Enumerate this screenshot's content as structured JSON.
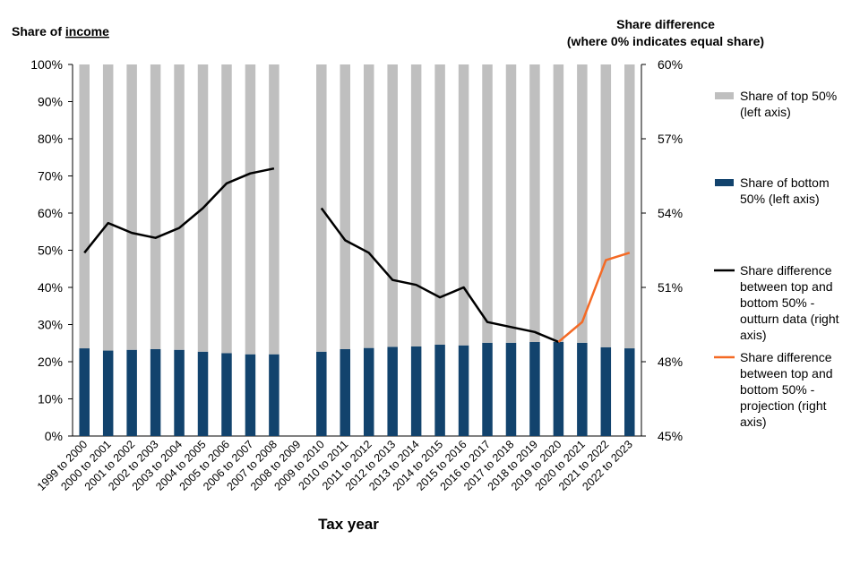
{
  "chart_data": {
    "type": "bar",
    "stacked": true,
    "left_axis_title": {
      "prefix": "Share of ",
      "underlined": "income"
    },
    "right_axis_title": [
      "Share difference",
      "(where 0% indicates equal share)"
    ],
    "xlabel": "Tax year",
    "ylim_left": [
      0,
      100
    ],
    "ylim_right": [
      45,
      60
    ],
    "left_ticks": [
      "0%",
      "10%",
      "20%",
      "30%",
      "40%",
      "50%",
      "60%",
      "70%",
      "80%",
      "90%",
      "100%"
    ],
    "right_ticks": [
      "45%",
      "48%",
      "51%",
      "54%",
      "57%",
      "60%"
    ],
    "categories": [
      "1999 to 2000",
      "2000 to 2001",
      "2001 to 2002",
      "2002 to 2003",
      "2003 to 2004",
      "2004 to 2005",
      "2005 to 2006",
      "2006 to 2007",
      "2007 to 2008",
      "2008 to 2009",
      "2009 to 2010",
      "2010 to 2011",
      "2011 to 2012",
      "2012 to 2013",
      "2013 to 2014",
      "2014 to 2015",
      "2015 to 2016",
      "2016 to 2017",
      "2017 to 2018",
      "2018 to 2019",
      "2019 to 2020",
      "2020 to 2021",
      "2021 to 2022",
      "2022 to 2023"
    ],
    "series": [
      {
        "name": "Share of bottom 50% (left axis)",
        "axis": "left",
        "kind": "bar",
        "color": "#12436d",
        "values": [
          23.6,
          23.0,
          23.2,
          23.4,
          23.2,
          22.7,
          22.3,
          22.0,
          22.0,
          null,
          22.7,
          23.4,
          23.7,
          24.0,
          24.1,
          24.6,
          24.4,
          25.1,
          25.1,
          25.3,
          25.3,
          25.1,
          23.9,
          23.6
        ]
      },
      {
        "name": "Share of top 50% (left axis)",
        "axis": "left",
        "kind": "bar",
        "color": "#bfbfbf",
        "values": [
          76.4,
          77.0,
          76.8,
          76.6,
          76.8,
          77.3,
          77.7,
          78.0,
          78.0,
          null,
          77.3,
          76.6,
          76.3,
          76.0,
          75.9,
          75.4,
          75.6,
          74.9,
          74.9,
          74.7,
          74.7,
          74.9,
          76.1,
          76.4
        ]
      },
      {
        "name": "Share difference between top and bottom 50% - outturn data (right axis)",
        "axis": "right",
        "kind": "line",
        "color": "#000000",
        "values": [
          52.4,
          53.6,
          53.2,
          53.0,
          53.4,
          54.2,
          55.2,
          55.6,
          55.8,
          null,
          54.2,
          52.9,
          52.4,
          51.3,
          51.1,
          50.6,
          51.0,
          49.6,
          49.4,
          49.2,
          48.8,
          null,
          null,
          null
        ]
      },
      {
        "name": "Share difference between top and bottom 50% - projection (right axis)",
        "axis": "right",
        "kind": "line",
        "color": "#f46a25",
        "values": [
          null,
          null,
          null,
          null,
          null,
          null,
          null,
          null,
          null,
          null,
          null,
          null,
          null,
          null,
          null,
          null,
          null,
          null,
          null,
          null,
          48.8,
          49.6,
          52.1,
          52.4
        ]
      }
    ],
    "legend": [
      {
        "kind": "bar",
        "color": "#bfbfbf",
        "lines": [
          "Share of top 50%",
          "(left axis)"
        ]
      },
      {
        "kind": "bar",
        "color": "#12436d",
        "lines": [
          "Share of bottom",
          "50% (left axis)"
        ]
      },
      {
        "kind": "line",
        "color": "#000000",
        "lines": [
          "Share difference",
          "between top and",
          "bottom 50% -",
          "outturn data (right",
          "axis)"
        ]
      },
      {
        "kind": "line",
        "color": "#f46a25",
        "lines": [
          "Share difference",
          "between top and",
          "bottom 50% -",
          "projection (right",
          "axis)"
        ]
      }
    ],
    "legend_position": "right"
  }
}
